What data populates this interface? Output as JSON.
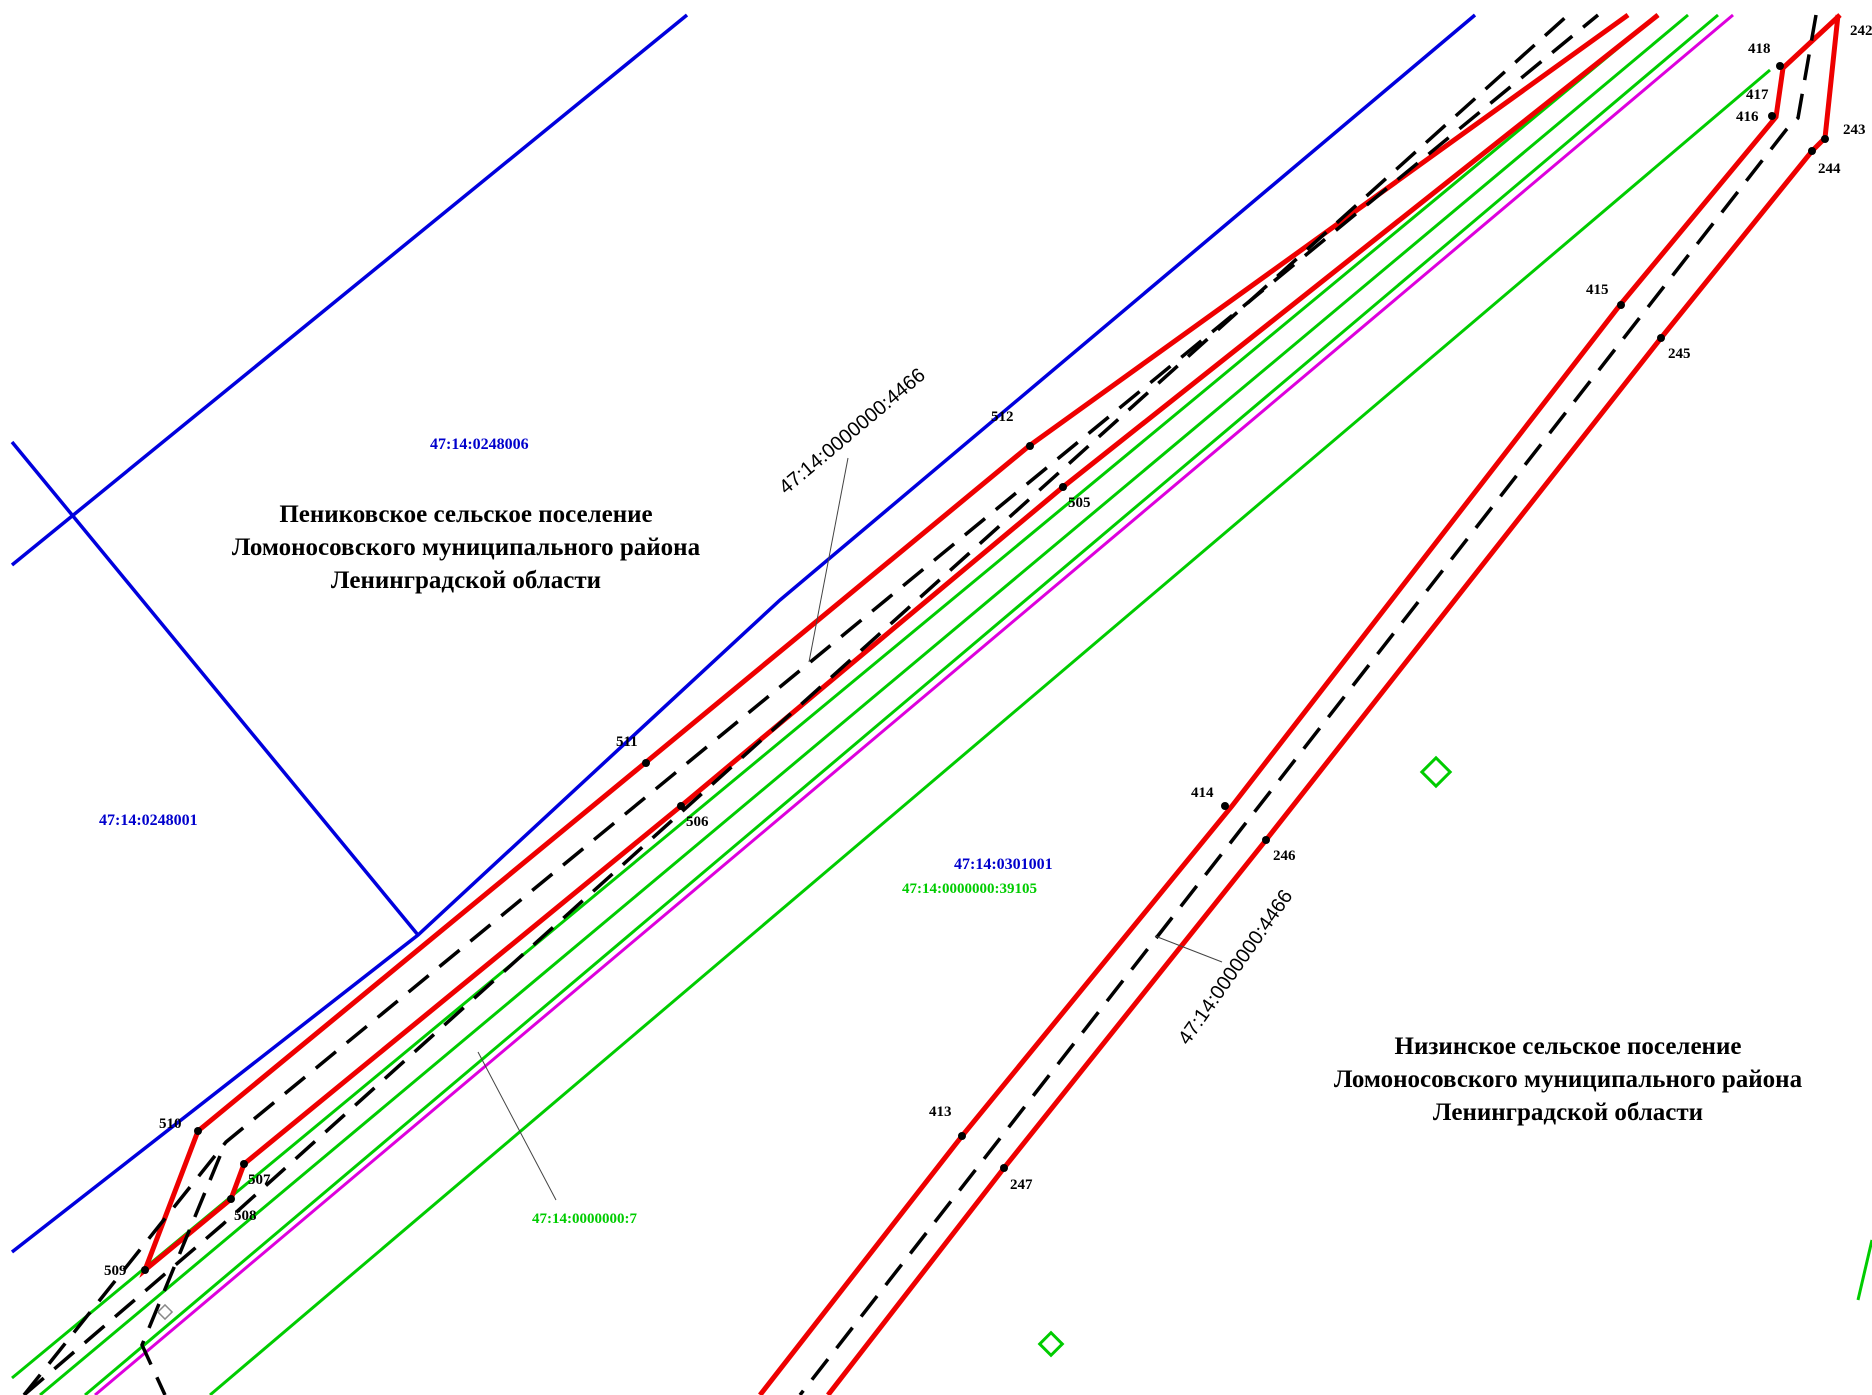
{
  "parcels": {
    "p0248006": "47:14:0248006",
    "p0248001": "47:14:0248001",
    "p0301001": "47:14:0301001",
    "p39105": "47:14:0000000:39105",
    "p7": "47:14:0000000:7",
    "p4466_top": "47:14:0000000:4466",
    "p4466_bottom": "47:14:0000000:4466"
  },
  "regions": {
    "penikovskoe": [
      "Пениковское сельское поселение",
      "Ломоносовского муниципального района",
      "Ленинградской области"
    ],
    "nizinskoe": [
      "Низинское сельское поселение",
      "Ломоносовского муниципального района",
      "Ленинградской области"
    ]
  },
  "points": {
    "p242": "242",
    "p243": "243",
    "p244": "244",
    "p245": "245",
    "p246": "246",
    "p247": "247",
    "p413": "413",
    "p414": "414",
    "p415": "415",
    "p416": "416",
    "p417": "417",
    "p418": "418",
    "p505": "505",
    "p506": "506",
    "p507": "507",
    "p508": "508",
    "p509": "509",
    "p510": "510",
    "p511": "511",
    "p512": "512"
  },
  "colors": {
    "boundary_quarter": "#0000dd",
    "boundary_zone": "#ee0000",
    "parcel_green": "#00cc00",
    "axis_dashed": "#000000",
    "magenta": "#dd00dd"
  }
}
